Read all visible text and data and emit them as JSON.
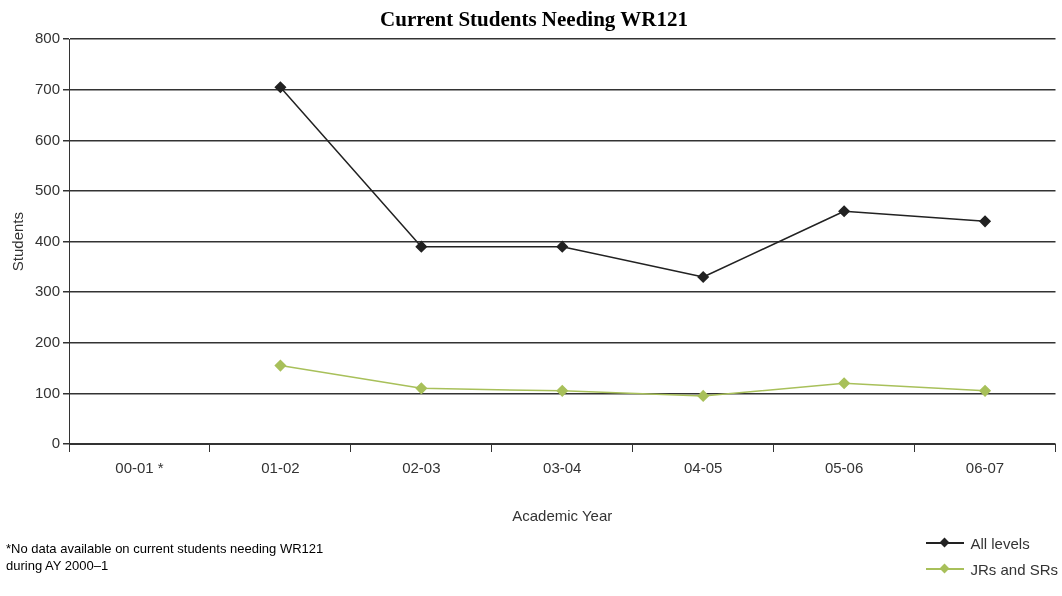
{
  "chart_data": {
    "type": "line",
    "title": "Current Students Needing WR121",
    "xlabel": "Academic Year",
    "ylabel": "Students",
    "categories": [
      "00-01 *",
      "01-02",
      "02-03",
      "03-04",
      "04-05",
      "05-06",
      "06-07"
    ],
    "series": [
      {
        "name": "All levels",
        "color": "#222222",
        "values": [
          null,
          705,
          390,
          390,
          330,
          460,
          440
        ]
      },
      {
        "name": "JRs and SRs",
        "color": "#a8c05a",
        "values": [
          null,
          155,
          110,
          105,
          95,
          120,
          105
        ]
      }
    ],
    "ylim": [
      0,
      800
    ],
    "yticks": [
      0,
      100,
      200,
      300,
      400,
      500,
      600,
      700,
      800
    ],
    "grid": "y",
    "legend": "bottom right",
    "marker": "diamond",
    "line_style": "solid",
    "annotations": [
      "*No data available on current students needing WR121 during AY 2000–1"
    ]
  }
}
